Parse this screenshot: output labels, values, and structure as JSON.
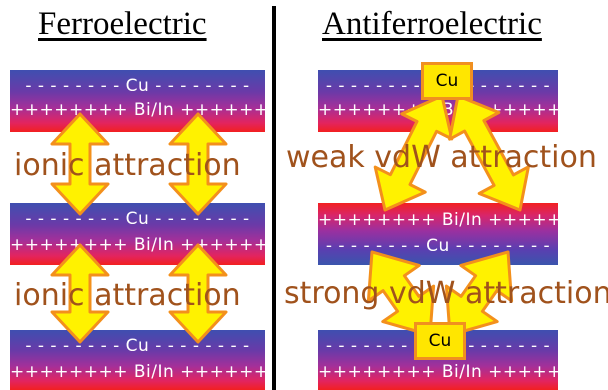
{
  "titles": {
    "left": "Ferroelectric",
    "right": "Antiferroelectric"
  },
  "layer_text": {
    "cu_dashed": "- - - - - - - - Cu - - - - - - - -",
    "bi_plus": "++++++++ Bi/In ++++++++",
    "cu_box": "Cu"
  },
  "labels": {
    "ionic": "ionic attraction",
    "weak": "weak vdW attraction",
    "strong": "strong vdW attraction"
  },
  "colors": {
    "arrow_fill": "#fff200",
    "arrow_stroke": "#f3901c",
    "label_text": "#a0521c",
    "cu_layer": "#3a55ad",
    "bi_layer": "#f0232a"
  }
}
